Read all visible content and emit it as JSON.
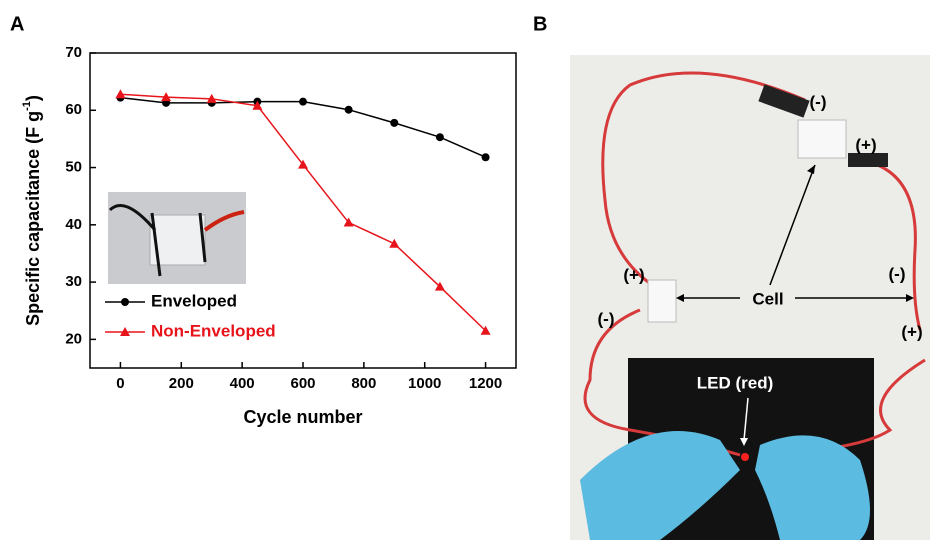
{
  "chart_data": {
    "type": "line",
    "xlabel": "Cycle number",
    "ylabel": {
      "main": "Specific capacitance (F g",
      "sup": "-1",
      "end": ")"
    },
    "x": [
      0,
      150,
      300,
      450,
      600,
      750,
      900,
      1050,
      1200
    ],
    "series": [
      {
        "name": "Enveloped",
        "color": "#000000",
        "marker": "circle",
        "values": [
          62.2,
          61.3,
          61.3,
          61.5,
          61.5,
          60.1,
          57.8,
          55.3,
          51.8
        ]
      },
      {
        "name": "Non-Enveloped",
        "color": "#e8141b",
        "marker": "triangle",
        "values": [
          62.8,
          62.3,
          62.0,
          60.8,
          50.5,
          40.4,
          36.7,
          29.2,
          21.5
        ]
      }
    ],
    "xlim": [
      -100,
      1300
    ],
    "xticks": [
      0,
      200,
      400,
      600,
      800,
      1000,
      1200
    ],
    "ylim": [
      15,
      70
    ],
    "yticks": [
      20,
      30,
      40,
      50,
      60,
      70
    ],
    "legend": "lower left"
  },
  "panels": {
    "a": "A",
    "b": "B",
    "photo_labels": [
      "(-)",
      "(+)",
      "(+)",
      "Cell",
      "(-)",
      "(-)",
      "(+)",
      "LED (red)"
    ]
  }
}
